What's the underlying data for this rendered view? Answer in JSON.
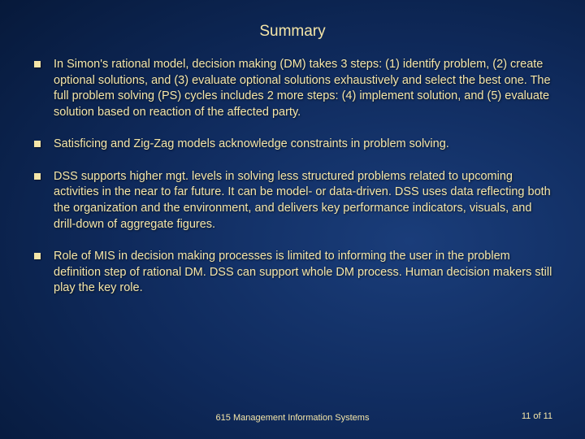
{
  "title": "Summary",
  "bullets": [
    "In Simon's rational model, decision making (DM) takes 3 steps: (1) identify problem, (2) create optional solutions, and (3) evaluate optional solutions exhaustively and select the best one. The full problem solving (PS) cycles includes 2 more steps: (4) implement solution, and (5) evaluate solution based on reaction of the affected party.",
    "Satisficing and Zig-Zag models acknowledge constraints in problem solving.",
    "DSS supports higher mgt. levels in solving less structured problems related to upcoming activities in the near to far future. It can be model- or data-driven. DSS uses data reflecting both the organization and the environment, and delivers key performance indicators, visuals, and drill-down of aggregate figures.",
    "Role of MIS in decision making processes is limited to informing the user in the problem definition step of rational DM. DSS can support whole DM process. Human decision makers still play the key role."
  ],
  "footer": {
    "center": "615 Management Information Systems",
    "right": "11 of 11"
  },
  "style": {
    "text_color": "#f5e6a8",
    "background_gradient_inner": "#1a3d7a",
    "background_gradient_mid": "#0f2a5c",
    "background_gradient_outer": "#020814",
    "title_fontsize": 19,
    "body_fontsize": 14.5,
    "footer_fontsize": 11,
    "bullet_marker": "square",
    "bullet_marker_size": 8,
    "font_family": "Verdana"
  }
}
